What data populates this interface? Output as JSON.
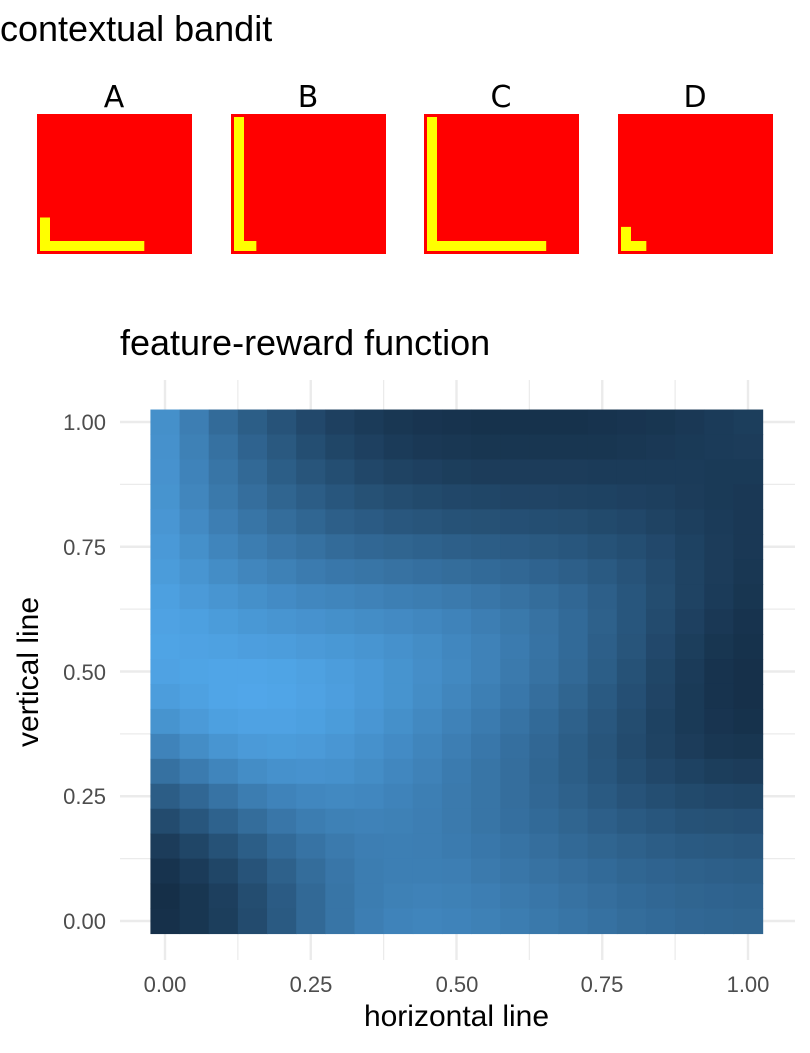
{
  "figure": {
    "title": "contextual bandit"
  },
  "panels": [
    {
      "label": "A",
      "vertical": 0.25,
      "horizontal": 0.7
    },
    {
      "label": "B",
      "vertical": 1.0,
      "horizontal": 0.15
    },
    {
      "label": "C",
      "vertical": 1.0,
      "horizontal": 0.8
    },
    {
      "label": "D",
      "vertical": 0.18,
      "horizontal": 0.17
    }
  ],
  "colors": {
    "panel_background": "#ff0000",
    "panel_bar": "#ffff00",
    "heat_low": "#132b43",
    "heat_high": "#56b1f7",
    "grid": "#ebebeb"
  },
  "chart_data": {
    "type": "heatmap",
    "title": "feature-reward function",
    "xlabel": "horizontal line",
    "ylabel": "vertical line",
    "xlim": [
      0,
      1
    ],
    "ylim": [
      0,
      1
    ],
    "x_ticks": [
      "0.00",
      "0.25",
      "0.50",
      "0.75",
      "1.00"
    ],
    "y_ticks": [
      "0.00",
      "0.25",
      "0.50",
      "0.75",
      "1.00"
    ],
    "grid": true,
    "legend": "none",
    "grid_size": 21,
    "x": [
      0,
      0.05,
      0.1,
      0.15,
      0.2,
      0.25,
      0.3,
      0.35,
      0.4,
      0.45,
      0.5,
      0.55,
      0.6,
      0.65,
      0.7,
      0.75,
      0.8,
      0.85,
      0.9,
      0.95,
      1
    ],
    "y": [
      1,
      0.95,
      0.9,
      0.85,
      0.8,
      0.75,
      0.7,
      0.65,
      0.6,
      0.55,
      0.5,
      0.45,
      0.4,
      0.35,
      0.3,
      0.25,
      0.2,
      0.15,
      0.1,
      0.05,
      0
    ],
    "values_note_rows": "rows ordered top (y=1) to bottom (y=0); values 0..1 relative reward",
    "values": [
      [
        0.75,
        0.62,
        0.48,
        0.38,
        0.3,
        0.22,
        0.16,
        0.12,
        0.09,
        0.07,
        0.06,
        0.05,
        0.05,
        0.05,
        0.05,
        0.06,
        0.07,
        0.08,
        0.1,
        0.12,
        0.14
      ],
      [
        0.76,
        0.64,
        0.52,
        0.42,
        0.34,
        0.26,
        0.2,
        0.16,
        0.12,
        0.1,
        0.09,
        0.08,
        0.08,
        0.08,
        0.08,
        0.08,
        0.09,
        0.1,
        0.11,
        0.12,
        0.13
      ],
      [
        0.77,
        0.66,
        0.55,
        0.46,
        0.38,
        0.31,
        0.26,
        0.21,
        0.18,
        0.16,
        0.14,
        0.13,
        0.13,
        0.13,
        0.13,
        0.12,
        0.12,
        0.12,
        0.12,
        0.11,
        0.11
      ],
      [
        0.78,
        0.68,
        0.58,
        0.5,
        0.43,
        0.37,
        0.32,
        0.28,
        0.25,
        0.23,
        0.21,
        0.2,
        0.19,
        0.19,
        0.18,
        0.17,
        0.16,
        0.15,
        0.13,
        0.11,
        0.1
      ],
      [
        0.8,
        0.71,
        0.62,
        0.55,
        0.49,
        0.44,
        0.39,
        0.36,
        0.33,
        0.31,
        0.29,
        0.28,
        0.27,
        0.26,
        0.25,
        0.23,
        0.21,
        0.18,
        0.15,
        0.12,
        0.1
      ],
      [
        0.82,
        0.75,
        0.67,
        0.61,
        0.56,
        0.52,
        0.48,
        0.45,
        0.43,
        0.41,
        0.39,
        0.37,
        0.36,
        0.34,
        0.32,
        0.29,
        0.26,
        0.22,
        0.17,
        0.13,
        0.1
      ],
      [
        0.84,
        0.79,
        0.73,
        0.68,
        0.64,
        0.6,
        0.57,
        0.55,
        0.53,
        0.51,
        0.49,
        0.47,
        0.45,
        0.42,
        0.39,
        0.35,
        0.3,
        0.24,
        0.18,
        0.13,
        0.09
      ],
      [
        0.87,
        0.83,
        0.79,
        0.75,
        0.72,
        0.69,
        0.67,
        0.65,
        0.63,
        0.61,
        0.59,
        0.56,
        0.53,
        0.49,
        0.45,
        0.39,
        0.32,
        0.25,
        0.18,
        0.12,
        0.08
      ],
      [
        0.89,
        0.87,
        0.84,
        0.81,
        0.79,
        0.77,
        0.75,
        0.73,
        0.71,
        0.69,
        0.66,
        0.62,
        0.58,
        0.53,
        0.47,
        0.4,
        0.32,
        0.24,
        0.16,
        0.1,
        0.06
      ],
      [
        0.9,
        0.89,
        0.88,
        0.86,
        0.85,
        0.83,
        0.81,
        0.79,
        0.76,
        0.73,
        0.69,
        0.65,
        0.6,
        0.54,
        0.47,
        0.39,
        0.31,
        0.22,
        0.14,
        0.08,
        0.05
      ],
      [
        0.89,
        0.9,
        0.91,
        0.91,
        0.9,
        0.88,
        0.85,
        0.82,
        0.78,
        0.74,
        0.7,
        0.65,
        0.59,
        0.53,
        0.46,
        0.38,
        0.29,
        0.2,
        0.12,
        0.06,
        0.04
      ],
      [
        0.85,
        0.88,
        0.91,
        0.92,
        0.91,
        0.89,
        0.86,
        0.82,
        0.78,
        0.73,
        0.68,
        0.63,
        0.57,
        0.5,
        0.43,
        0.35,
        0.27,
        0.19,
        0.11,
        0.06,
        0.04
      ],
      [
        0.78,
        0.83,
        0.87,
        0.89,
        0.89,
        0.87,
        0.84,
        0.8,
        0.75,
        0.7,
        0.65,
        0.6,
        0.54,
        0.47,
        0.4,
        0.33,
        0.25,
        0.17,
        0.11,
        0.07,
        0.05
      ],
      [
        0.66,
        0.73,
        0.79,
        0.83,
        0.84,
        0.83,
        0.8,
        0.76,
        0.72,
        0.67,
        0.62,
        0.57,
        0.51,
        0.45,
        0.38,
        0.31,
        0.24,
        0.18,
        0.13,
        0.09,
        0.08
      ],
      [
        0.52,
        0.6,
        0.67,
        0.73,
        0.76,
        0.77,
        0.76,
        0.73,
        0.69,
        0.65,
        0.6,
        0.55,
        0.5,
        0.44,
        0.38,
        0.32,
        0.26,
        0.21,
        0.17,
        0.14,
        0.13
      ],
      [
        0.37,
        0.45,
        0.54,
        0.61,
        0.66,
        0.69,
        0.7,
        0.69,
        0.66,
        0.63,
        0.59,
        0.55,
        0.5,
        0.45,
        0.4,
        0.35,
        0.3,
        0.26,
        0.23,
        0.21,
        0.2
      ],
      [
        0.24,
        0.32,
        0.41,
        0.49,
        0.56,
        0.61,
        0.64,
        0.65,
        0.64,
        0.62,
        0.59,
        0.55,
        0.51,
        0.47,
        0.43,
        0.39,
        0.35,
        0.32,
        0.29,
        0.28,
        0.27
      ],
      [
        0.13,
        0.2,
        0.29,
        0.38,
        0.47,
        0.54,
        0.59,
        0.62,
        0.63,
        0.62,
        0.6,
        0.57,
        0.54,
        0.5,
        0.46,
        0.43,
        0.4,
        0.37,
        0.35,
        0.34,
        0.33
      ],
      [
        0.06,
        0.12,
        0.2,
        0.3,
        0.4,
        0.49,
        0.56,
        0.61,
        0.63,
        0.63,
        0.62,
        0.59,
        0.56,
        0.53,
        0.5,
        0.47,
        0.44,
        0.42,
        0.4,
        0.39,
        0.38
      ],
      [
        0.03,
        0.08,
        0.15,
        0.25,
        0.36,
        0.46,
        0.55,
        0.61,
        0.64,
        0.65,
        0.64,
        0.62,
        0.59,
        0.56,
        0.53,
        0.5,
        0.47,
        0.45,
        0.43,
        0.42,
        0.41
      ],
      [
        0.04,
        0.08,
        0.14,
        0.24,
        0.35,
        0.46,
        0.55,
        0.62,
        0.66,
        0.67,
        0.66,
        0.64,
        0.61,
        0.58,
        0.55,
        0.52,
        0.49,
        0.47,
        0.45,
        0.44,
        0.43
      ]
    ]
  }
}
